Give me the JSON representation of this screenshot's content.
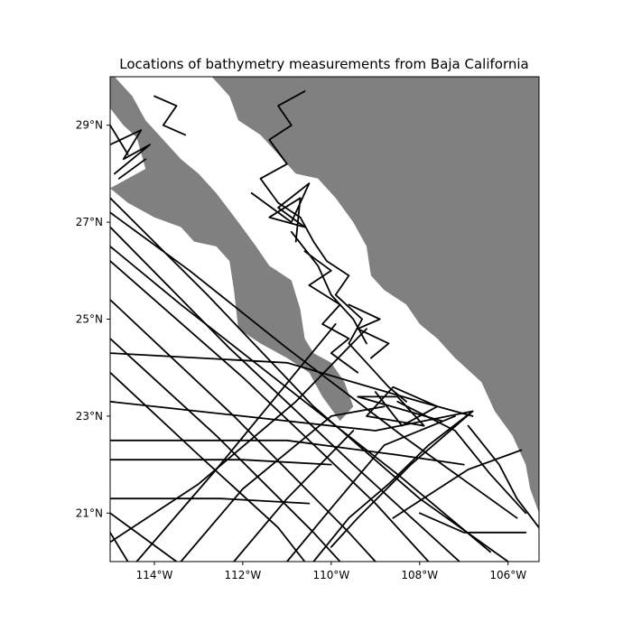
{
  "chart_data": {
    "type": "map",
    "title": "Locations of bathymetry measurements from Baja California",
    "xlim": [
      -115,
      -105.3
    ],
    "ylim": [
      20,
      30
    ],
    "xticks": [
      {
        "value": -114,
        "label": "114°W"
      },
      {
        "value": -112,
        "label": "112°W"
      },
      {
        "value": -110,
        "label": "110°W"
      },
      {
        "value": -108,
        "label": "108°W"
      },
      {
        "value": -106,
        "label": "106°W"
      }
    ],
    "yticks": [
      {
        "value": 21,
        "label": "21°N"
      },
      {
        "value": 23,
        "label": "23°N"
      },
      {
        "value": 25,
        "label": "25°N"
      },
      {
        "value": 27,
        "label": "27°N"
      },
      {
        "value": 29,
        "label": "29°N"
      }
    ],
    "colors": {
      "land": "#808080",
      "water": "#ffffff",
      "track": "#000000",
      "frame": "#000000"
    },
    "land": [
      {
        "name": "baja-california-peninsula",
        "points": [
          [
            -115.0,
            29.35
          ],
          [
            -114.7,
            29.0
          ],
          [
            -114.4,
            28.75
          ],
          [
            -114.2,
            28.1
          ],
          [
            -114.6,
            27.9
          ],
          [
            -115.0,
            27.7
          ],
          [
            -114.6,
            27.4
          ],
          [
            -114.0,
            27.1
          ],
          [
            -113.4,
            26.9
          ],
          [
            -113.1,
            26.6
          ],
          [
            -112.6,
            26.5
          ],
          [
            -112.3,
            26.2
          ],
          [
            -112.2,
            25.6
          ],
          [
            -112.1,
            24.8
          ],
          [
            -111.6,
            24.5
          ],
          [
            -111.0,
            24.2
          ],
          [
            -110.5,
            23.9
          ],
          [
            -110.2,
            23.4
          ],
          [
            -109.8,
            22.9
          ],
          [
            -109.5,
            23.2
          ],
          [
            -109.7,
            23.7
          ],
          [
            -110.0,
            24.1
          ],
          [
            -110.4,
            24.3
          ],
          [
            -110.6,
            24.6
          ],
          [
            -110.7,
            25.2
          ],
          [
            -110.9,
            25.8
          ],
          [
            -111.4,
            26.1
          ],
          [
            -111.7,
            26.5
          ],
          [
            -112.1,
            27.0
          ],
          [
            -112.6,
            27.6
          ],
          [
            -113.0,
            28.0
          ],
          [
            -113.4,
            28.3
          ],
          [
            -113.9,
            28.8
          ],
          [
            -114.2,
            29.1
          ],
          [
            -114.5,
            29.6
          ],
          [
            -114.9,
            30.0
          ],
          [
            -115.0,
            30.0
          ]
        ]
      },
      {
        "name": "mexican-mainland",
        "points": [
          [
            -112.7,
            30.0
          ],
          [
            -112.3,
            29.6
          ],
          [
            -112.1,
            29.1
          ],
          [
            -111.6,
            28.8
          ],
          [
            -111.2,
            28.4
          ],
          [
            -110.8,
            28.0
          ],
          [
            -110.3,
            27.9
          ],
          [
            -109.9,
            27.5
          ],
          [
            -109.5,
            27.0
          ],
          [
            -109.2,
            26.5
          ],
          [
            -109.1,
            25.9
          ],
          [
            -108.8,
            25.6
          ],
          [
            -108.3,
            25.3
          ],
          [
            -108.0,
            24.9
          ],
          [
            -107.6,
            24.6
          ],
          [
            -107.2,
            24.2
          ],
          [
            -106.6,
            23.7
          ],
          [
            -106.3,
            23.1
          ],
          [
            -105.9,
            22.6
          ],
          [
            -105.6,
            22.0
          ],
          [
            -105.5,
            21.5
          ],
          [
            -105.3,
            21.0
          ],
          [
            -105.3,
            30.0
          ]
        ]
      }
    ],
    "tracks": [
      [
        [
          -115.0,
          27.5
        ],
        [
          -112.8,
          25.5
        ],
        [
          -110.4,
          23.2
        ],
        [
          -108.0,
          21.3
        ],
        [
          -106.0,
          20.0
        ]
      ],
      [
        [
          -115.0,
          26.9
        ],
        [
          -112.3,
          24.4
        ],
        [
          -109.5,
          22.0
        ],
        [
          -107.1,
          20.0
        ]
      ],
      [
        [
          -115.0,
          26.2
        ],
        [
          -112.0,
          23.8
        ],
        [
          -109.0,
          21.2
        ],
        [
          -107.8,
          20.0
        ]
      ],
      [
        [
          -115.0,
          25.4
        ],
        [
          -112.2,
          23.0
        ],
        [
          -109.6,
          20.6
        ],
        [
          -109.0,
          20.0
        ]
      ],
      [
        [
          -115.0,
          24.6
        ],
        [
          -112.6,
          22.6
        ],
        [
          -110.4,
          20.6
        ],
        [
          -109.8,
          20.0
        ]
      ],
      [
        [
          -115.0,
          23.9
        ],
        [
          -113.0,
          22.2
        ],
        [
          -111.2,
          20.7
        ],
        [
          -110.6,
          20.0
        ]
      ],
      [
        [
          -115.0,
          27.2
        ],
        [
          -113.2,
          26.0
        ],
        [
          -111.0,
          24.4
        ],
        [
          -108.4,
          22.6
        ],
        [
          -105.8,
          20.9
        ]
      ],
      [
        [
          -115.0,
          26.5
        ],
        [
          -113.4,
          25.3
        ],
        [
          -111.3,
          23.8
        ],
        [
          -108.5,
          21.8
        ],
        [
          -106.4,
          20.2
        ]
      ],
      [
        [
          -115.0,
          24.3
        ],
        [
          -111.0,
          24.1
        ],
        [
          -108.0,
          23.3
        ],
        [
          -106.8,
          23.0
        ]
      ],
      [
        [
          -115.0,
          23.3
        ],
        [
          -112.0,
          23.0
        ],
        [
          -109.0,
          22.7
        ],
        [
          -106.8,
          23.1
        ]
      ],
      [
        [
          -115.0,
          22.5
        ],
        [
          -111.0,
          22.5
        ],
        [
          -108.5,
          22.2
        ],
        [
          -107.0,
          22.0
        ]
      ],
      [
        [
          -115.0,
          22.1
        ],
        [
          -112.0,
          22.1
        ],
        [
          -110.0,
          22.0
        ]
      ],
      [
        [
          -115.0,
          21.3
        ],
        [
          -112.5,
          21.3
        ],
        [
          -110.5,
          21.2
        ]
      ],
      [
        [
          -115.0,
          20.4
        ],
        [
          -113.0,
          21.6
        ],
        [
          -110.8,
          23.3
        ],
        [
          -109.2,
          24.8
        ]
      ],
      [
        [
          -114.4,
          20.0
        ],
        [
          -112.6,
          21.9
        ],
        [
          -110.8,
          23.9
        ],
        [
          -109.9,
          24.9
        ]
      ],
      [
        [
          -113.4,
          20.0
        ],
        [
          -112.0,
          21.5
        ],
        [
          -110.0,
          23.0
        ],
        [
          -108.8,
          23.2
        ]
      ],
      [
        [
          -112.2,
          20.0
        ],
        [
          -111.0,
          21.3
        ],
        [
          -109.5,
          22.7
        ]
      ],
      [
        [
          -111.0,
          20.0
        ],
        [
          -110.0,
          21.1
        ],
        [
          -108.8,
          22.4
        ],
        [
          -107.2,
          23.0
        ]
      ],
      [
        [
          -115.0,
          21.0
        ],
        [
          -113.5,
          20.0
        ]
      ],
      [
        [
          -114.6,
          20.0
        ],
        [
          -115.0,
          20.6
        ]
      ],
      [
        [
          -106.8,
          23.1
        ],
        [
          -107.8,
          22.4
        ],
        [
          -108.7,
          21.6
        ],
        [
          -109.6,
          20.9
        ],
        [
          -110.4,
          20.0
        ]
      ],
      [
        [
          -106.8,
          23.1
        ],
        [
          -108.2,
          22.0
        ],
        [
          -109.4,
          20.9
        ],
        [
          -110.0,
          20.3
        ]
      ],
      [
        [
          -108.5,
          23.3
        ],
        [
          -107.2,
          22.7
        ],
        [
          -106.4,
          21.8
        ],
        [
          -105.6,
          21.0
        ]
      ],
      [
        [
          -108.0,
          21.0
        ],
        [
          -107.0,
          20.6
        ],
        [
          -105.6,
          20.6
        ]
      ],
      [
        [
          -108.6,
          20.9
        ],
        [
          -106.9,
          21.9
        ],
        [
          -105.7,
          22.3
        ]
      ],
      [
        [
          -106.9,
          22.8
        ],
        [
          -106.2,
          22.0
        ],
        [
          -105.8,
          21.3
        ],
        [
          -105.3,
          20.7
        ]
      ],
      [
        [
          -109.0,
          23.5
        ],
        [
          -108.4,
          22.8
        ],
        [
          -107.6,
          23.2
        ],
        [
          -108.6,
          23.6
        ],
        [
          -109.2,
          23.0
        ],
        [
          -107.9,
          22.8
        ],
        [
          -108.5,
          23.4
        ],
        [
          -109.4,
          23.4
        ],
        [
          -107.5,
          22.9
        ]
      ],
      [
        [
          -110.6,
          29.7
        ],
        [
          -111.2,
          29.4
        ],
        [
          -110.9,
          29.0
        ],
        [
          -111.4,
          28.7
        ],
        [
          -111.0,
          28.2
        ],
        [
          -111.6,
          27.9
        ],
        [
          -111.2,
          27.4
        ],
        [
          -110.7,
          27.1
        ],
        [
          -110.4,
          26.6
        ],
        [
          -110.1,
          26.2
        ],
        [
          -109.6,
          25.9
        ],
        [
          -109.9,
          25.5
        ],
        [
          -109.3,
          25.0
        ],
        [
          -109.6,
          24.5
        ],
        [
          -109.1,
          24.0
        ],
        [
          -108.7,
          23.6
        ],
        [
          -108.3,
          23.3
        ]
      ],
      [
        [
          -111.8,
          27.6
        ],
        [
          -110.9,
          27.0
        ],
        [
          -110.5,
          27.8
        ],
        [
          -111.2,
          27.3
        ],
        [
          -110.6,
          26.9
        ],
        [
          -111.4,
          27.1
        ],
        [
          -110.7,
          27.5
        ],
        [
          -110.8,
          26.6
        ]
      ],
      [
        [
          -110.9,
          26.8
        ],
        [
          -110.3,
          26.1
        ],
        [
          -110.0,
          25.5
        ],
        [
          -109.5,
          25.0
        ],
        [
          -109.2,
          24.5
        ]
      ],
      [
        [
          -110.6,
          26.4
        ],
        [
          -110.0,
          26.0
        ],
        [
          -110.5,
          25.7
        ],
        [
          -109.8,
          25.3
        ],
        [
          -110.2,
          24.9
        ],
        [
          -109.6,
          24.6
        ],
        [
          -110.0,
          24.3
        ],
        [
          -109.4,
          23.9
        ]
      ],
      [
        [
          -109.6,
          25.3
        ],
        [
          -108.9,
          25.0
        ],
        [
          -109.4,
          24.8
        ],
        [
          -108.7,
          24.5
        ],
        [
          -109.1,
          24.2
        ]
      ],
      [
        [
          -114.0,
          29.6
        ],
        [
          -113.5,
          29.4
        ],
        [
          -113.8,
          29.0
        ],
        [
          -113.3,
          28.8
        ]
      ],
      [
        [
          -115.0,
          28.6
        ],
        [
          -114.3,
          28.9
        ],
        [
          -114.7,
          28.3
        ],
        [
          -114.1,
          28.6
        ],
        [
          -114.9,
          28.0
        ]
      ],
      [
        [
          -115.0,
          29.0
        ],
        [
          -114.6,
          28.4
        ]
      ],
      [
        [
          -114.8,
          27.9
        ],
        [
          -114.2,
          28.3
        ]
      ]
    ]
  }
}
